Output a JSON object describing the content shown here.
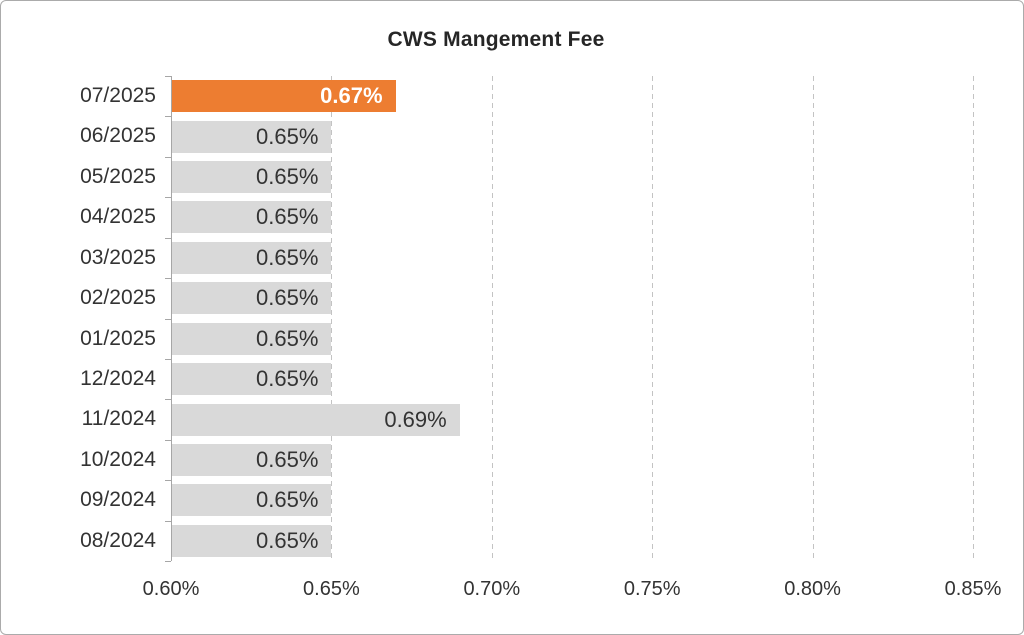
{
  "window": {
    "background": "#FFFFFF",
    "border_color": "#ABABAB"
  },
  "chart_data": {
    "type": "bar",
    "orientation": "horizontal",
    "title": "CWS Mangement Fee",
    "xlabel": "",
    "ylabel": "",
    "categories": [
      "07/2025",
      "06/2025",
      "05/2025",
      "04/2025",
      "03/2025",
      "02/2025",
      "01/2025",
      "12/2024",
      "11/2024",
      "10/2024",
      "09/2024",
      "08/2024"
    ],
    "values": [
      0.67,
      0.65,
      0.65,
      0.65,
      0.65,
      0.65,
      0.65,
      0.65,
      0.69,
      0.65,
      0.65,
      0.65
    ],
    "value_labels": [
      "0.67%",
      "0.65%",
      "0.65%",
      "0.65%",
      "0.65%",
      "0.65%",
      "0.65%",
      "0.65%",
      "0.69%",
      "0.65%",
      "0.65%",
      "0.65%"
    ],
    "xlim": [
      0.6,
      0.85
    ],
    "x_ticks": [
      0.6,
      0.65,
      0.7,
      0.75,
      0.8,
      0.85
    ],
    "x_tick_labels": [
      "0.60%",
      "0.65%",
      "0.70%",
      "0.75%",
      "0.80%",
      "0.85%"
    ],
    "grid": "vertical-dashed",
    "legend": "none",
    "highlight_index": 0,
    "colors": {
      "highlight_bar": "#ED7D31",
      "default_bar": "#D9D9D9",
      "highlight_value_label": "#FFFFFF",
      "value_label": "#333333",
      "gridline": "#C3C3C3",
      "axis_line": "#A6A6A6",
      "title": "#262626",
      "tick_label": "#333333"
    }
  }
}
